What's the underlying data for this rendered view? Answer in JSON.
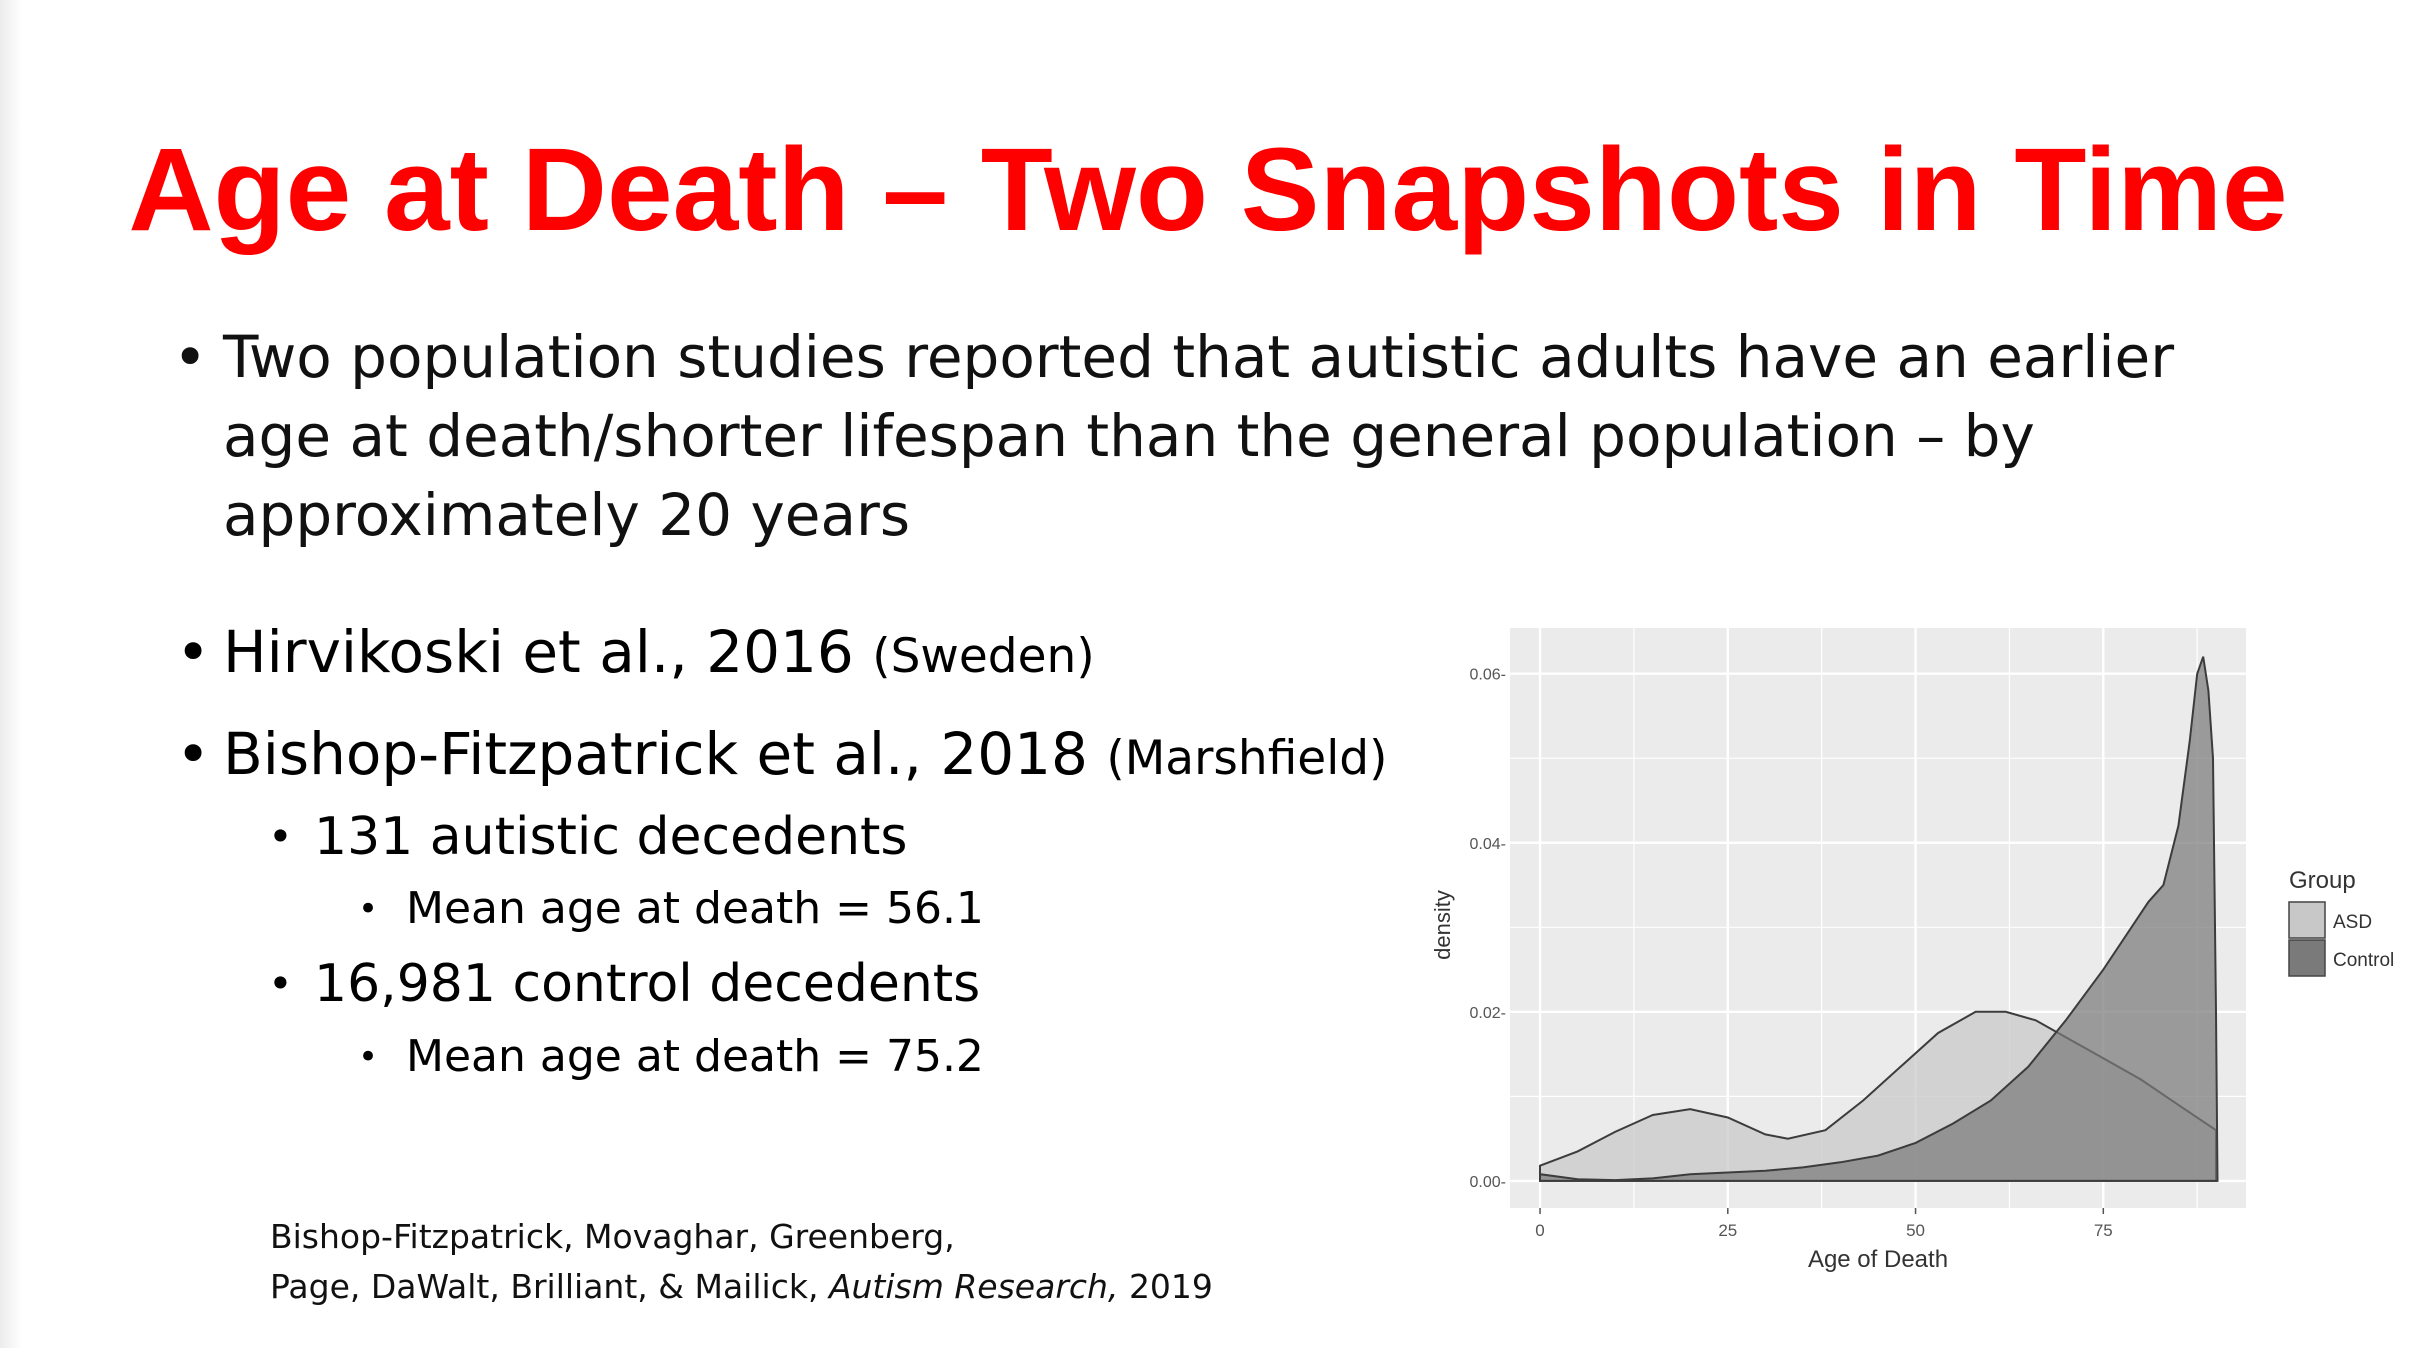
{
  "slide": {
    "title": "Age at Death – Two Snapshots in Time",
    "bullets": {
      "intro": "Two population studies reported that autistic adults have an earlier age at death/shorter lifespan than the general population – by approximately 20 years",
      "study1": {
        "text": "Hirvikoski et al., 2016",
        "note": "(Sweden)"
      },
      "study2": {
        "text": "Bishop-Fitzpatrick et al., 2018",
        "note": "(Marshfield)"
      },
      "sub1": "131 autistic decedents",
      "sub1_detail": "Mean age at death = 56.1",
      "sub2": "16,981 control decedents",
      "sub2_detail": "Mean age at death = 75.2"
    },
    "citation": {
      "line1": "Bishop-Fitzpatrick, Movaghar, Greenberg,",
      "line2_prefix": "Page, DaWalt, Brilliant, & Mailick,",
      "journal": "Autism Research,",
      "year": "2019"
    },
    "bullet_glyph": "•"
  },
  "chart_data": {
    "type": "area",
    "xlabel": "Age of Death",
    "ylabel": "density",
    "xlim": [
      -4,
      94
    ],
    "ylim": [
      -0.0032,
      0.0654
    ],
    "x_ticks": [
      0,
      25,
      50,
      75
    ],
    "x_tick_labels": [
      "0",
      "25",
      "50",
      "75"
    ],
    "y_ticks": [
      0.0,
      0.02,
      0.04,
      0.06
    ],
    "y_tick_labels": [
      "0.00-",
      "0.02-",
      "0.04-",
      "0.06-"
    ],
    "grid": true,
    "legend": {
      "title": "Group",
      "position": "right"
    },
    "colors": {
      "panel": "#ebebeb",
      "grid": "#ffffff",
      "asd_fill": "#c6c6c6",
      "control_fill": "#6f6f6f",
      "outline": "#3c3c3c"
    },
    "series": [
      {
        "name": "ASD",
        "fill": "#c8c8c8",
        "points": [
          [
            0,
            0.0018
          ],
          [
            5,
            0.0035
          ],
          [
            10,
            0.0058
          ],
          [
            15,
            0.0078
          ],
          [
            20,
            0.0085
          ],
          [
            25,
            0.0075
          ],
          [
            30,
            0.0055
          ],
          [
            33,
            0.005
          ],
          [
            38,
            0.006
          ],
          [
            43,
            0.0095
          ],
          [
            48,
            0.0135
          ],
          [
            53,
            0.0175
          ],
          [
            58,
            0.02
          ],
          [
            62,
            0.02
          ],
          [
            66,
            0.019
          ],
          [
            70,
            0.017
          ],
          [
            75,
            0.0145
          ],
          [
            80,
            0.012
          ],
          [
            85,
            0.009
          ],
          [
            90,
            0.006
          ]
        ]
      },
      {
        "name": "Control",
        "fill": "#7a7a7a",
        "points": [
          [
            0,
            0.0008
          ],
          [
            5,
            0.0002
          ],
          [
            10,
            0.0001
          ],
          [
            15,
            0.0003
          ],
          [
            20,
            0.0008
          ],
          [
            25,
            0.001
          ],
          [
            30,
            0.0012
          ],
          [
            35,
            0.0016
          ],
          [
            40,
            0.0022
          ],
          [
            45,
            0.003
          ],
          [
            50,
            0.0045
          ],
          [
            55,
            0.0068
          ],
          [
            60,
            0.0095
          ],
          [
            65,
            0.0135
          ],
          [
            70,
            0.019
          ],
          [
            75,
            0.025
          ],
          [
            78,
            0.029
          ],
          [
            81,
            0.033
          ],
          [
            83,
            0.035
          ],
          [
            85,
            0.042
          ],
          [
            86.5,
            0.052
          ],
          [
            87.5,
            0.06
          ],
          [
            88.3,
            0.062
          ],
          [
            89,
            0.058
          ],
          [
            89.6,
            0.05
          ],
          [
            90,
            0.02
          ],
          [
            90.2,
            0.0
          ]
        ]
      }
    ]
  }
}
